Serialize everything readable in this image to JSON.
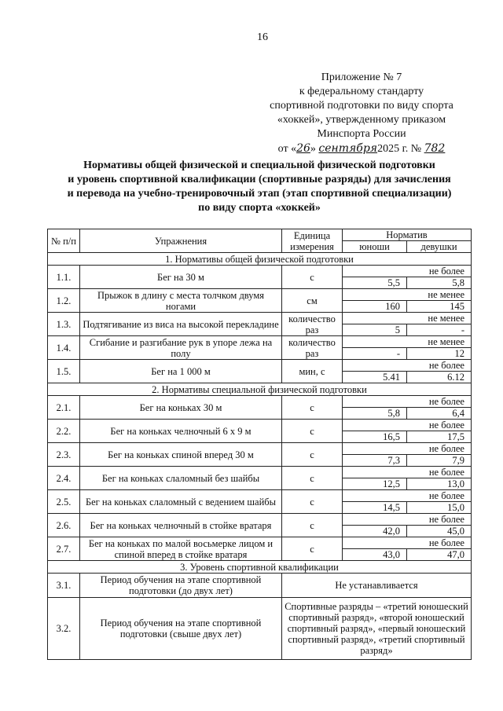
{
  "page_number": "16",
  "appendix": {
    "lines": [
      "Приложение № 7",
      "к федеральному стандарту",
      "спортивной подготовки по виду спорта",
      "«хоккей», утвержденному приказом",
      "Минспорта России"
    ],
    "order_prefix": "от «",
    "day": "26",
    "mid": "»",
    "month": "сентября",
    "year": "2025 г. №",
    "number": "782"
  },
  "title": [
    "Нормативы общей физической и специальной физической подготовки",
    "и уровень спортивной квалификации (спортивные разряды) для зачисления",
    "и перевода на учебно-тренировочный этап (этап спортивной специализации)",
    "по виду спорта «хоккей»"
  ],
  "table": {
    "headers": {
      "num": "№ п/п",
      "exercise": "Упражнения",
      "unit": "Единица измерения",
      "norm": "Норматив",
      "boys": "юноши",
      "girls": "девушки"
    },
    "sections": [
      {
        "title": "1. Нормативы общей физической подготовки",
        "rows": [
          {
            "num": "1.1.",
            "exercise": "Бег на 30 м",
            "unit": "с",
            "cond": "не более",
            "boys": "5,5",
            "girls": "5,8"
          },
          {
            "num": "1.2.",
            "exercise": "Прыжок в длину с места толчком двумя ногами",
            "unit": "см",
            "cond": "не менее",
            "boys": "160",
            "girls": "145"
          },
          {
            "num": "1.3.",
            "exercise": "Подтягивание из виса на высокой перекладине",
            "unit": "количество раз",
            "cond": "не менее",
            "boys": "5",
            "girls": "-"
          },
          {
            "num": "1.4.",
            "exercise": "Сгибание и разгибание рук в упоре лежа на полу",
            "unit": "количество раз",
            "cond": "не менее",
            "boys": "-",
            "girls": "12"
          },
          {
            "num": "1.5.",
            "exercise": "Бег на 1 000 м",
            "unit": "мин, с",
            "cond": "не более",
            "boys": "5.41",
            "girls": "6.12"
          }
        ]
      },
      {
        "title": "2. Нормативы специальной физической подготовки",
        "rows": [
          {
            "num": "2.1.",
            "exercise": "Бег на коньках 30 м",
            "unit": "с",
            "cond": "не более",
            "boys": "5,8",
            "girls": "6,4"
          },
          {
            "num": "2.2.",
            "exercise": "Бег на коньках челночный 6 х 9 м",
            "unit": "с",
            "cond": "не более",
            "boys": "16,5",
            "girls": "17,5"
          },
          {
            "num": "2.3.",
            "exercise": "Бег на коньках спиной вперед 30 м",
            "unit": "с",
            "cond": "не более",
            "boys": "7,3",
            "girls": "7,9"
          },
          {
            "num": "2.4.",
            "exercise": "Бег на коньках слаломный без шайбы",
            "unit": "с",
            "cond": "не более",
            "boys": "12,5",
            "girls": "13,0"
          },
          {
            "num": "2.5.",
            "exercise": "Бег на коньках слаломный с ведением шайбы",
            "unit": "с",
            "cond": "не более",
            "boys": "14,5",
            "girls": "15,0"
          },
          {
            "num": "2.6.",
            "exercise": "Бег на коньках челночный в стойке вратаря",
            "unit": "с",
            "cond": "не более",
            "boys": "42,0",
            "girls": "45,0"
          },
          {
            "num": "2.7.",
            "exercise": "Бег на коньках по малой восьмерке лицом и спиной вперед в стойке вратаря",
            "unit": "с",
            "cond": "не более",
            "boys": "43,0",
            "girls": "47,0"
          }
        ]
      },
      {
        "title": "3. Уровень спортивной квалификации",
        "rows": [
          {
            "num": "3.1.",
            "exercise": "Период обучения на этапе спортивной подготовки (до двух лет)",
            "value": "Не устанавливается"
          },
          {
            "num": "3.2.",
            "exercise": "Период обучения на этапе спортивной подготовки (свыше двух лет)",
            "value": "Спортивные разряды – «третий юношеский спортивный разряд», «второй юношеский спортивный разряд», «первый юношеский спортивный разряд», «третий спортивный разряд»"
          }
        ]
      }
    ]
  }
}
